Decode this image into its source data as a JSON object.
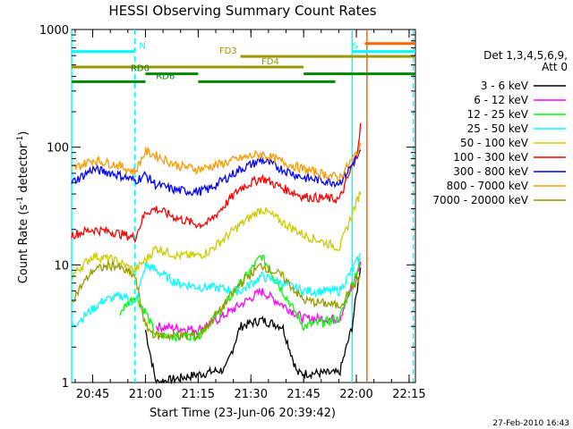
{
  "chart_data": {
    "type": "line",
    "title": "HESSI Observing Summary Count Rates",
    "xlabel": "Start Time (23-Jun-06 20:39:42)",
    "ylabel_main": "Count Rate (s",
    "ylabel_sup1": "-1",
    "ylabel_mid": " detector",
    "ylabel_sup2": "-1",
    "ylabel_end": ")",
    "yscale": "log",
    "ylim": [
      1,
      1000
    ],
    "xlim_min": [
      20.65,
      22.28
    ],
    "x_ticks": [
      {
        "h": 20.75,
        "label": "20:45"
      },
      {
        "h": 21.0,
        "label": "21:00"
      },
      {
        "h": 21.25,
        "label": "21:15"
      },
      {
        "h": 21.5,
        "label": "21:30"
      },
      {
        "h": 21.75,
        "label": "21:45"
      },
      {
        "h": 22.0,
        "label": "22:00"
      },
      {
        "h": 22.25,
        "label": "22:15"
      }
    ],
    "y_ticks": [
      {
        "v": 1,
        "label": "1"
      },
      {
        "v": 10,
        "label": "10"
      },
      {
        "v": 100,
        "label": "100"
      },
      {
        "v": 1000,
        "label": "1000"
      }
    ],
    "legend_title": [
      "Det 1,3,4,5,6,9,",
      "Att 0"
    ],
    "series": [
      {
        "name": "3 - 6 keV",
        "color": "#000000",
        "points": [
          [
            21.0,
            2.8
          ],
          [
            21.05,
            1.0
          ],
          [
            21.38,
            1.3
          ],
          [
            21.45,
            3.0
          ],
          [
            21.55,
            3.4
          ],
          [
            21.65,
            3.0
          ],
          [
            21.72,
            1.2
          ],
          [
            21.92,
            1.2
          ],
          [
            21.98,
            3.0
          ],
          [
            22.02,
            10
          ]
        ]
      },
      {
        "name": "6 - 12 keV",
        "color": "#ff00ff",
        "points": [
          [
            21.05,
            3.0
          ],
          [
            21.25,
            2.8
          ],
          [
            21.35,
            3.5
          ],
          [
            21.55,
            6.0
          ],
          [
            21.75,
            3.5
          ],
          [
            21.92,
            3.5
          ],
          [
            22.02,
            10
          ]
        ]
      },
      {
        "name": "12 - 25 keV",
        "color": "#00ff00",
        "points": [
          [
            20.88,
            4.0
          ],
          [
            20.95,
            5.5
          ],
          [
            21.0,
            4.0
          ],
          [
            21.05,
            2.5
          ],
          [
            21.25,
            2.5
          ],
          [
            21.35,
            4.0
          ],
          [
            21.55,
            12
          ],
          [
            21.75,
            3.0
          ],
          [
            21.92,
            3.5
          ],
          [
            22.02,
            11
          ]
        ]
      },
      {
        "name": "25 - 50 keV",
        "color": "#00ffff",
        "points": [
          [
            20.65,
            3.0
          ],
          [
            20.8,
            5.0
          ],
          [
            20.9,
            5.5
          ],
          [
            20.95,
            4.5
          ],
          [
            21.0,
            10
          ],
          [
            21.05,
            9.0
          ],
          [
            21.15,
            7.0
          ],
          [
            21.25,
            6.5
          ],
          [
            21.3,
            6.5
          ],
          [
            21.45,
            6.0
          ],
          [
            21.55,
            8.0
          ],
          [
            21.65,
            7.0
          ],
          [
            21.75,
            6.0
          ],
          [
            21.92,
            6.0
          ],
          [
            22.02,
            12
          ]
        ]
      },
      {
        "name": "50 - 100 keV",
        "color": "#cccc00",
        "points": [
          [
            20.65,
            8.0
          ],
          [
            20.75,
            12
          ],
          [
            20.85,
            11
          ],
          [
            20.95,
            9.0
          ],
          [
            21.0,
            11
          ],
          [
            21.05,
            14
          ],
          [
            21.15,
            12
          ],
          [
            21.25,
            12
          ],
          [
            21.3,
            13
          ],
          [
            21.45,
            22
          ],
          [
            21.55,
            30
          ],
          [
            21.65,
            23
          ],
          [
            21.75,
            18
          ],
          [
            21.92,
            14
          ],
          [
            22.02,
            42
          ]
        ]
      },
      {
        "name": "100 - 300 keV",
        "color": "#ff0000",
        "points": [
          [
            20.65,
            18
          ],
          [
            20.75,
            20
          ],
          [
            20.85,
            19
          ],
          [
            20.95,
            17
          ],
          [
            21.0,
            28
          ],
          [
            21.05,
            30
          ],
          [
            21.15,
            25
          ],
          [
            21.25,
            22
          ],
          [
            21.3,
            23
          ],
          [
            21.45,
            45
          ],
          [
            21.55,
            55
          ],
          [
            21.65,
            45
          ],
          [
            21.75,
            38
          ],
          [
            21.92,
            36
          ],
          [
            22.0,
            85
          ],
          [
            22.02,
            150
          ]
        ]
      },
      {
        "name": "300 - 800 keV",
        "color": "#0000ff",
        "points": [
          [
            20.65,
            50
          ],
          [
            20.75,
            65
          ],
          [
            20.85,
            60
          ],
          [
            20.95,
            52
          ],
          [
            21.0,
            58
          ],
          [
            21.05,
            48
          ],
          [
            21.15,
            43
          ],
          [
            21.25,
            42
          ],
          [
            21.3,
            44
          ],
          [
            21.45,
            65
          ],
          [
            21.55,
            78
          ],
          [
            21.65,
            65
          ],
          [
            21.75,
            55
          ],
          [
            21.92,
            50
          ],
          [
            22.02,
            90
          ]
        ]
      },
      {
        "name": "800 - 7000 keV",
        "color": "#ff9900",
        "points": [
          [
            20.65,
            65
          ],
          [
            20.75,
            78
          ],
          [
            20.85,
            72
          ],
          [
            20.95,
            62
          ],
          [
            21.0,
            92
          ],
          [
            21.05,
            85
          ],
          [
            21.15,
            70
          ],
          [
            21.25,
            65
          ],
          [
            21.3,
            68
          ],
          [
            21.45,
            80
          ],
          [
            21.55,
            88
          ],
          [
            21.65,
            75
          ],
          [
            21.75,
            65
          ],
          [
            21.92,
            55
          ],
          [
            22.02,
            100
          ]
        ]
      },
      {
        "name": "7000 - 20000 keV",
        "color": "#999900",
        "points": [
          [
            20.65,
            5.0
          ],
          [
            20.75,
            9.0
          ],
          [
            20.85,
            10
          ],
          [
            20.95,
            8.0
          ],
          [
            21.0,
            3.0
          ],
          [
            21.05,
            2.5
          ],
          [
            21.25,
            2.5
          ],
          [
            21.35,
            4.0
          ],
          [
            21.45,
            7.0
          ],
          [
            21.55,
            10
          ],
          [
            21.65,
            8.0
          ],
          [
            21.75,
            5.0
          ],
          [
            21.92,
            4.5
          ],
          [
            22.02,
            8.0
          ]
        ]
      }
    ],
    "state_bars": [
      {
        "label": "N",
        "label_at": 20.97,
        "color": "#00ffff",
        "y": 650,
        "segments": [
          [
            20.65,
            20.95
          ]
        ]
      },
      {
        "label": "S",
        "label_at": 21.98,
        "color": "#00ffff",
        "y": 650,
        "segments": [
          [
            21.98,
            22.28
          ]
        ]
      },
      {
        "label": "",
        "label_at": 0,
        "color": "#ff6600",
        "y": 760,
        "segments": [
          [
            22.04,
            22.28
          ]
        ]
      },
      {
        "label": "FD3",
        "label_at": 21.35,
        "color": "#999900",
        "y": 590,
        "segments": [
          [
            21.45,
            22.28
          ]
        ]
      },
      {
        "label": "FD4",
        "label_at": 21.55,
        "color": "#999900",
        "y": 480,
        "segments": [
          [
            20.65,
            21.75
          ]
        ]
      },
      {
        "label": "RD0",
        "label_at": 20.93,
        "color": "#008800",
        "y": 420,
        "segments": [
          [
            21.0,
            21.25
          ],
          [
            21.75,
            22.28
          ]
        ]
      },
      {
        "label": "RD6",
        "label_at": 21.05,
        "color": "#008800",
        "y": 360,
        "segments": [
          [
            20.65,
            21.0
          ],
          [
            21.25,
            21.9
          ]
        ]
      }
    ],
    "vlines": [
      {
        "h": 20.65,
        "color": "#00ffff",
        "dash": false
      },
      {
        "h": 20.95,
        "color": "#00ffff",
        "dash": true
      },
      {
        "h": 21.98,
        "color": "#00ffff",
        "dash": false
      },
      {
        "h": 22.05,
        "color": "#ff6600",
        "dash": false
      },
      {
        "h": 22.27,
        "color": "#00ffff",
        "dash": true
      }
    ],
    "footer_date": "27-Feb-2010 16:43"
  }
}
